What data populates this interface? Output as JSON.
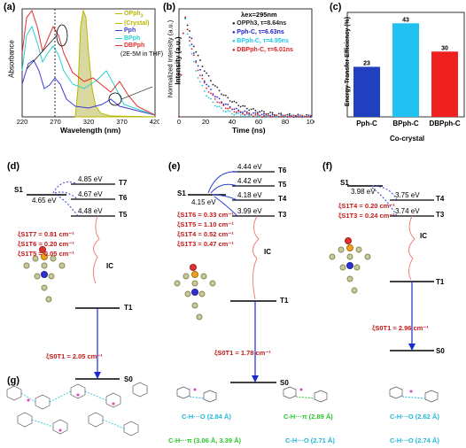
{
  "panel_labels": {
    "a": "(a)",
    "b": "(b)",
    "c": "(c)",
    "d": "(d)",
    "e": "(e)",
    "f": "(f)",
    "g": "(g)"
  },
  "panel_a": {
    "ylabel": "Absorbance",
    "xlabel": "Wavelength (nm)",
    "x_ticks": [
      "220",
      "270",
      "320",
      "370",
      "420"
    ],
    "legend": [
      {
        "name": "OPph",
        "sub": "3",
        "suffix": "",
        "color": "#b8b800"
      },
      {
        "name": "(Crystal)",
        "sub": "",
        "suffix": "",
        "color": "#b8b800"
      },
      {
        "name": "Pph",
        "sub": "",
        "suffix": "",
        "color": "#3a3ad8"
      },
      {
        "name": "BPph",
        "sub": "",
        "suffix": "",
        "color": "#28d0d0"
      },
      {
        "name": "DBPph",
        "sub": "",
        "suffix": "",
        "color": "#e03030"
      }
    ],
    "note": "(2E-5M in THF)",
    "ylabel_right": "Normalized Intensity (a.u.)"
  },
  "panel_b": {
    "ylabel": "Intensity (a.u.)",
    "xlabel": "Time (ns)",
    "x_ticks": [
      "0",
      "20",
      "40",
      "60",
      "80",
      "100"
    ],
    "lambda": "λex=295nm",
    "legend": [
      {
        "label": "OPPh3, τ=8.64ns",
        "color": "#222222"
      },
      {
        "label": "Pph-C, τ=6.63ns",
        "color": "#2020d0"
      },
      {
        "label": "BPph-C, τ=4.95ns",
        "color": "#20c8e8"
      },
      {
        "label": "DBPph-C, τ=6.01ns",
        "color": "#e02020"
      }
    ]
  },
  "chart_data": {
    "type": "bar",
    "categories": [
      "Pph-C",
      "BPph-C",
      "DBPph-C"
    ],
    "values": [
      23,
      43,
      30
    ],
    "colors": [
      "#2040c0",
      "#20c0f0",
      "#f02020"
    ],
    "ylabel": "Energy Transfer Efficiency (%)",
    "xlabel": "Co-crystal",
    "ylim": [
      0,
      48
    ]
  },
  "panel_d": {
    "S1": "S1",
    "S1_energy": "4.65 eV",
    "levels": [
      {
        "energy": "4.85 eV",
        "state": "T7"
      },
      {
        "energy": "4.67 eV",
        "state": "T6"
      },
      {
        "energy": "4.48 eV",
        "state": "T5"
      }
    ],
    "soc": [
      {
        "label": "ξS1T7 = 0.81 cm⁻¹"
      },
      {
        "label": "ξS1T6 = 0.20 cm⁻¹"
      },
      {
        "label": "ξS1T5 = 0.05 cm⁻¹"
      }
    ],
    "IC": "IC",
    "T1": "T1",
    "S0": "S0",
    "soc_s0": "ξS0T1 = 2.05 cm⁻¹"
  },
  "panel_e": {
    "S1": "S1",
    "S1_energy": "4.15 eV",
    "levels": [
      {
        "energy": "4.44 eV",
        "state": "T6"
      },
      {
        "energy": "4.42 eV",
        "state": "T5"
      },
      {
        "energy": "4.18 eV",
        "state": "T4"
      },
      {
        "energy": "3.99 eV",
        "state": "T3"
      }
    ],
    "soc": [
      {
        "label": "ξS1T6 = 0.33 cm⁻¹"
      },
      {
        "label": "ξS1T5 = 1.10 cm⁻¹"
      },
      {
        "label": "ξS1T4 = 0.52 cm⁻¹"
      },
      {
        "label": "ξS1T3 = 0.47 cm⁻¹"
      }
    ],
    "IC": "IC",
    "T1": "T1",
    "S0": "S0",
    "soc_s0": "ξS0T1 = 1.78 cm⁻¹"
  },
  "panel_f": {
    "S1": "S1",
    "S1_energy": "3.98 eV",
    "levels": [
      {
        "energy": "3.75 eV",
        "state": "T4"
      },
      {
        "energy": "3.74 eV",
        "state": "T3"
      }
    ],
    "soc": [
      {
        "label": "ξS1T4 = 0.20 cm⁻¹"
      },
      {
        "label": "ξS1T3 = 0.24 cm⁻¹"
      }
    ],
    "IC": "IC",
    "T1": "T1",
    "S0": "S0",
    "soc_s0": "ξS0T1 = 2.96 cm⁻¹"
  },
  "panel_g": {
    "captions": [
      {
        "text": "C-H···O (2.84 Å)",
        "color": "#20b8d8"
      },
      {
        "text": "C-H···π (2.89 Å)",
        "color": "#28c828"
      },
      {
        "text": "C-H···O (2.62 Å)",
        "color": "#20b8d8"
      },
      {
        "text": "C-H···π (3.06 Å, 3.39 Å)",
        "color": "#28c828"
      },
      {
        "text": "C-H···O (2.71 Å)",
        "color": "#20b8d8"
      },
      {
        "text": "C-H···O (2.74 Å)",
        "color": "#20b8d8"
      }
    ]
  }
}
